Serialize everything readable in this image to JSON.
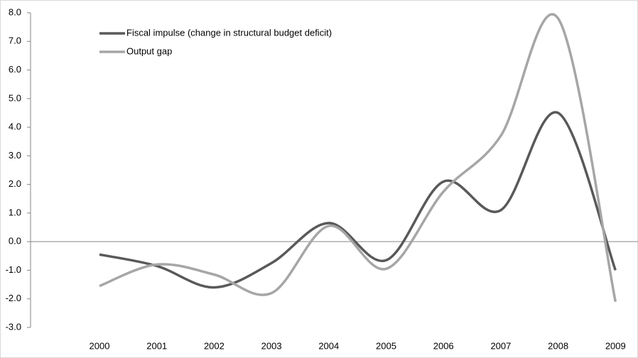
{
  "chart_data": {
    "type": "line",
    "categories": [
      "2000",
      "2001",
      "2002",
      "2003",
      "2004",
      "2005",
      "2006",
      "2007",
      "2008",
      "2009"
    ],
    "series": [
      {
        "name": "Fiscal impulse (change in structural budget deficit)",
        "color": "#595959",
        "values": [
          -0.45,
          -0.85,
          -1.6,
          -0.75,
          0.65,
          -0.65,
          2.1,
          1.1,
          4.5,
          -1.0
        ]
      },
      {
        "name": "Output gap",
        "color": "#a6a6a6",
        "values": [
          -1.55,
          -0.8,
          -1.15,
          -1.8,
          0.55,
          -0.95,
          1.75,
          3.7,
          7.8,
          -2.1
        ]
      }
    ],
    "ylim": [
      -3,
      8
    ],
    "yticks": [
      {
        "value": -3,
        "label": "-3.0"
      },
      {
        "value": -2,
        "label": "-2.0"
      },
      {
        "value": -1,
        "label": "-1.0"
      },
      {
        "value": 0,
        "label": "0.0"
      },
      {
        "value": 1,
        "label": "1.0"
      },
      {
        "value": 2,
        "label": "2.0"
      },
      {
        "value": 3,
        "label": "3.0"
      },
      {
        "value": 4,
        "label": "4.0"
      },
      {
        "value": 5,
        "label": "5.0"
      },
      {
        "value": 6,
        "label": "6.0"
      },
      {
        "value": 7,
        "label": "7.0"
      },
      {
        "value": 8,
        "label": "8.0"
      }
    ],
    "smooth": true,
    "legend": "top-left"
  }
}
